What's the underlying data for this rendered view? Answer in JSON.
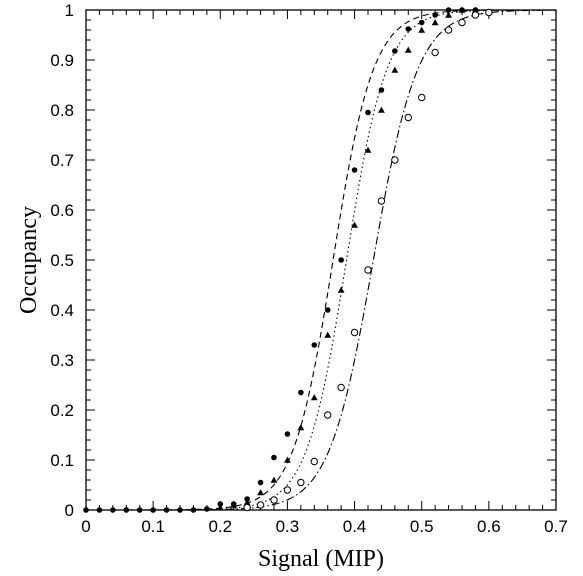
{
  "chart_data": {
    "type": "scatter",
    "title": "",
    "xlabel": "Signal (MIP)",
    "ylabel": "Occupancy",
    "xlim": [
      0,
      0.7
    ],
    "ylim": [
      0,
      1
    ],
    "x_ticks": [
      "0",
      "0.1",
      "0.2",
      "0.3",
      "0.4",
      "0.5",
      "0.6",
      "0.7"
    ],
    "y_ticks": [
      "0",
      "0.1",
      "0.2",
      "0.3",
      "0.4",
      "0.5",
      "0.6",
      "0.7",
      "0.8",
      "0.9",
      "1"
    ],
    "grid": false,
    "legend": "none",
    "series": [
      {
        "marker": "filled-circle",
        "line_style": "dashed",
        "fit_center": 0.368,
        "fit_width": 0.03,
        "points": [
          [
            0.0,
            0.0
          ],
          [
            0.02,
            0.0
          ],
          [
            0.04,
            0.0
          ],
          [
            0.06,
            0.0
          ],
          [
            0.08,
            0.0
          ],
          [
            0.1,
            0.0
          ],
          [
            0.12,
            0.0
          ],
          [
            0.14,
            0.0
          ],
          [
            0.16,
            0.0
          ],
          [
            0.18,
            0.002
          ],
          [
            0.2,
            0.012
          ],
          [
            0.22,
            0.012
          ],
          [
            0.24,
            0.022
          ],
          [
            0.26,
            0.055
          ],
          [
            0.28,
            0.105
          ],
          [
            0.3,
            0.152
          ],
          [
            0.32,
            0.235
          ],
          [
            0.34,
            0.33
          ],
          [
            0.36,
            0.4
          ],
          [
            0.38,
            0.5
          ],
          [
            0.4,
            0.68
          ],
          [
            0.42,
            0.795
          ],
          [
            0.44,
            0.84
          ],
          [
            0.46,
            0.918
          ],
          [
            0.48,
            0.962
          ],
          [
            0.5,
            0.975
          ],
          [
            0.52,
            0.99
          ],
          [
            0.54,
            1.0
          ],
          [
            0.56,
            1.0
          ],
          [
            0.58,
            1.0
          ]
        ]
      },
      {
        "marker": "filled-triangle",
        "line_style": "dotted",
        "fit_center": 0.388,
        "fit_width": 0.03,
        "points": [
          [
            0.2,
            0.005
          ],
          [
            0.22,
            0.01
          ],
          [
            0.24,
            0.015
          ],
          [
            0.26,
            0.035
          ],
          [
            0.28,
            0.06
          ],
          [
            0.3,
            0.1
          ],
          [
            0.32,
            0.165
          ],
          [
            0.34,
            0.225
          ],
          [
            0.36,
            0.35
          ],
          [
            0.38,
            0.44
          ],
          [
            0.4,
            0.57
          ],
          [
            0.42,
            0.72
          ],
          [
            0.44,
            0.8
          ],
          [
            0.46,
            0.88
          ],
          [
            0.48,
            0.92
          ],
          [
            0.5,
            0.96
          ],
          [
            0.52,
            0.975
          ],
          [
            0.54,
            0.99
          ],
          [
            0.56,
            1.0
          ],
          [
            0.58,
            1.0
          ]
        ]
      },
      {
        "marker": "open-circle",
        "line_style": "dash-dot",
        "fit_center": 0.428,
        "fit_width": 0.033,
        "points": [
          [
            0.24,
            0.005
          ],
          [
            0.26,
            0.01
          ],
          [
            0.28,
            0.02
          ],
          [
            0.3,
            0.04
          ],
          [
            0.32,
            0.055
          ],
          [
            0.34,
            0.097
          ],
          [
            0.36,
            0.19
          ],
          [
            0.38,
            0.245
          ],
          [
            0.4,
            0.355
          ],
          [
            0.42,
            0.48
          ],
          [
            0.44,
            0.618
          ],
          [
            0.46,
            0.7
          ],
          [
            0.48,
            0.785
          ],
          [
            0.5,
            0.825
          ],
          [
            0.52,
            0.915
          ],
          [
            0.54,
            0.96
          ],
          [
            0.56,
            0.975
          ],
          [
            0.58,
            0.99
          ],
          [
            0.6,
            0.995
          ]
        ]
      }
    ]
  }
}
